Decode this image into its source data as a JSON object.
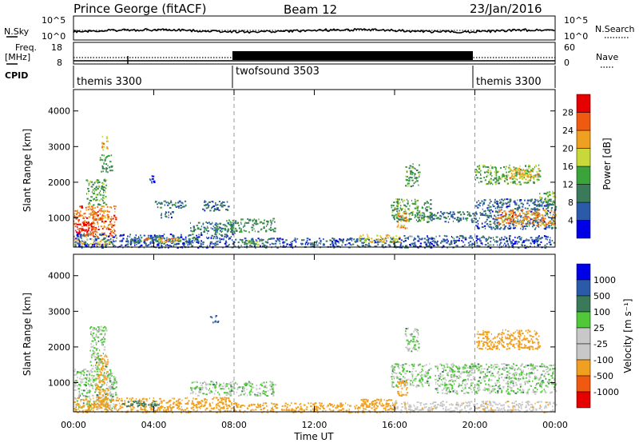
{
  "header": {
    "station": "Prince George (fitACF)",
    "beam": "Beam 12",
    "date": "23/Jan/2016"
  },
  "noise_panel": {
    "left_label": "N.Sky",
    "right_label": "N.Search",
    "left_ticks": [
      "10^5",
      "10^0"
    ],
    "right_ticks": [
      "10^5",
      "10^0"
    ]
  },
  "freq_panel": {
    "left_label_1": "Freq.",
    "left_label_2": "[MHz]",
    "right_label": "Nave",
    "left_ticks": [
      "18",
      "8"
    ],
    "right_ticks": [
      "60",
      "0"
    ]
  },
  "cpid_panel": {
    "label": "CPID",
    "segments": [
      {
        "name": "themis 3300",
        "start": 0,
        "end": 8
      },
      {
        "name": "twofsound 3503",
        "start": 8,
        "end": 20
      },
      {
        "name": "themis 3300",
        "start": 20,
        "end": 24
      }
    ]
  },
  "chart_data": [
    {
      "type": "heatmap",
      "title": "Power",
      "ylabel": "Slant Range [km]",
      "xlabel": "",
      "x_ticks": [
        "00:00",
        "04:00",
        "08:00",
        "12:00",
        "16:00",
        "20:00",
        "00:00"
      ],
      "y_ticks": [
        "1000",
        "2000",
        "3000",
        "4000"
      ],
      "ylim": [
        180,
        4600
      ],
      "xlim": [
        0,
        24
      ],
      "colorbar": {
        "label": "Power [dB]",
        "ticks": [
          "4",
          "8",
          "12",
          "16",
          "20",
          "24",
          "28"
        ],
        "range": [
          0,
          30
        ]
      },
      "regions": [
        {
          "t0": 0.0,
          "t1": 2.1,
          "r0": 480,
          "r1": 1350,
          "v": 24
        },
        {
          "t0": 0.05,
          "t1": 0.9,
          "r0": 550,
          "r1": 900,
          "v": 28
        },
        {
          "t0": 0.9,
          "t1": 1.7,
          "r0": 950,
          "r1": 1250,
          "v": 22
        },
        {
          "t0": 0.6,
          "t1": 1.6,
          "r0": 1350,
          "r1": 2100,
          "v": 13
        },
        {
          "t0": 1.3,
          "t1": 1.9,
          "r0": 2300,
          "r1": 2800,
          "v": 12
        },
        {
          "t0": 1.4,
          "t1": 1.7,
          "r0": 2900,
          "r1": 3300,
          "v": 19
        },
        {
          "t0": 0.0,
          "t1": 8.0,
          "r0": 180,
          "r1": 560,
          "v": 5
        },
        {
          "t0": 0.0,
          "t1": 1.8,
          "r0": 250,
          "r1": 420,
          "v": 18
        },
        {
          "t0": 2.8,
          "t1": 6.2,
          "r0": 300,
          "r1": 480,
          "v": 10
        },
        {
          "t0": 3.5,
          "t1": 5.3,
          "r0": 330,
          "r1": 450,
          "v": 22
        },
        {
          "t0": 5.8,
          "t1": 8.0,
          "r0": 550,
          "r1": 900,
          "v": 9
        },
        {
          "t0": 6.4,
          "t1": 7.7,
          "r0": 1200,
          "r1": 1500,
          "v": 7
        },
        {
          "t0": 3.9,
          "t1": 5.6,
          "r0": 1300,
          "r1": 1500,
          "v": 8
        },
        {
          "t0": 4.3,
          "t1": 5.0,
          "r0": 1000,
          "r1": 1200,
          "v": 7
        },
        {
          "t0": 3.7,
          "t1": 4.0,
          "r0": 1950,
          "r1": 2200,
          "v": 6
        },
        {
          "t0": 7.6,
          "t1": 10.0,
          "r0": 620,
          "r1": 1000,
          "v": 11
        },
        {
          "t0": 8.0,
          "t1": 16.0,
          "r0": 180,
          "r1": 450,
          "v": 6
        },
        {
          "t0": 8.3,
          "t1": 9.6,
          "r0": 260,
          "r1": 400,
          "v": 12
        },
        {
          "t0": 14.2,
          "t1": 16.3,
          "r0": 330,
          "r1": 560,
          "v": 18
        },
        {
          "t0": 15.8,
          "t1": 17.8,
          "r0": 900,
          "r1": 1550,
          "v": 12
        },
        {
          "t0": 16.1,
          "t1": 16.6,
          "r0": 700,
          "r1": 1150,
          "v": 22
        },
        {
          "t0": 16.5,
          "t1": 17.2,
          "r0": 1900,
          "r1": 2550,
          "v": 12
        },
        {
          "t0": 17.3,
          "t1": 20.0,
          "r0": 900,
          "r1": 1200,
          "v": 8
        },
        {
          "t0": 16.0,
          "t1": 24.0,
          "r0": 180,
          "r1": 520,
          "v": 6
        },
        {
          "t0": 20.0,
          "t1": 24.0,
          "r0": 700,
          "r1": 1550,
          "v": 7
        },
        {
          "t0": 21.0,
          "t1": 24.0,
          "r0": 800,
          "r1": 1250,
          "v": 22
        },
        {
          "t0": 23.2,
          "t1": 24.0,
          "r0": 1350,
          "r1": 1800,
          "v": 14
        },
        {
          "t0": 20.0,
          "t1": 23.2,
          "r0": 1950,
          "r1": 2500,
          "v": 14
        },
        {
          "t0": 21.7,
          "t1": 23.2,
          "r0": 2100,
          "r1": 2400,
          "v": 20
        }
      ]
    },
    {
      "type": "heatmap",
      "title": "Velocity",
      "ylabel": "Slant Range [km]",
      "xlabel": "Time UT",
      "x_ticks": [
        "00:00",
        "04:00",
        "08:00",
        "12:00",
        "16:00",
        "20:00",
        "00:00"
      ],
      "y_ticks": [
        "1000",
        "2000",
        "3000",
        "4000"
      ],
      "ylim": [
        180,
        4600
      ],
      "xlim": [
        0,
        24
      ],
      "colorbar": {
        "label": "Velocity [m s⁻¹]",
        "ticks": [
          "1000",
          "500",
          "100",
          "25",
          "-25",
          "-100",
          "-500",
          "-1000"
        ]
      },
      "regions": [
        {
          "t0": 0.0,
          "t1": 2.1,
          "r0": 250,
          "r1": 1400,
          "v": 0
        },
        {
          "t0": 1.1,
          "t1": 1.7,
          "r0": 300,
          "r1": 1800,
          "v": -150
        },
        {
          "t0": 0.8,
          "t1": 1.6,
          "r0": 1400,
          "r1": 2600,
          "v": 0
        },
        {
          "t0": 0.0,
          "t1": 8.0,
          "r0": 180,
          "r1": 600,
          "v": -150
        },
        {
          "t0": 2.4,
          "t1": 4.2,
          "r0": 350,
          "r1": 520,
          "v": 60
        },
        {
          "t0": 5.8,
          "t1": 10.0,
          "r0": 650,
          "r1": 1050,
          "v": 0
        },
        {
          "t0": 8.0,
          "t1": 16.0,
          "r0": 180,
          "r1": 450,
          "v": -150
        },
        {
          "t0": 14.3,
          "t1": 16.2,
          "r0": 330,
          "r1": 560,
          "v": -200
        },
        {
          "t0": 15.8,
          "t1": 17.8,
          "r0": 900,
          "r1": 1550,
          "v": 0
        },
        {
          "t0": 16.1,
          "t1": 16.6,
          "r0": 650,
          "r1": 1100,
          "v": -150
        },
        {
          "t0": 16.5,
          "t1": 17.2,
          "r0": 1900,
          "r1": 2550,
          "v": 0
        },
        {
          "t0": 16.0,
          "t1": 24.0,
          "r0": 180,
          "r1": 500,
          "v": -80
        },
        {
          "t0": 18.0,
          "t1": 24.0,
          "r0": 700,
          "r1": 1550,
          "v": 0
        },
        {
          "t0": 20.0,
          "t1": 23.2,
          "r0": 1950,
          "r1": 2500,
          "v": -300
        },
        {
          "t0": 6.8,
          "t1": 7.2,
          "r0": 2700,
          "r1": 2900,
          "v": 300
        }
      ]
    }
  ],
  "colors": {
    "power_scale": [
      "#0000e6",
      "#2a5aa8",
      "#3a7a5a",
      "#3aa33a",
      "#c8d83a",
      "#f0a020",
      "#f05a10",
      "#e60000"
    ],
    "velocity_scale": [
      "#e60000",
      "#f05a10",
      "#f0a020",
      "#c8c8c8",
      "#c8c8c8",
      "#50c83a",
      "#3a7a5a",
      "#2a5aa8",
      "#0000e6"
    ],
    "ground_scatter": "#c8c8c8"
  }
}
